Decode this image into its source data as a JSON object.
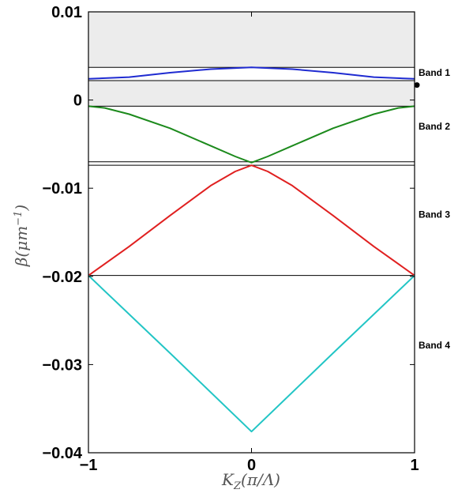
{
  "chart_data": {
    "type": "line",
    "title": "",
    "xlabel": "K_Z(π/Λ)",
    "ylabel": "β(μm⁻¹)",
    "xlim": [
      -1,
      1
    ],
    "ylim": [
      -0.04,
      0.01
    ],
    "xticks": [
      -1,
      0,
      1
    ],
    "xtick_labels": [
      "−1",
      "0",
      "1"
    ],
    "yticks": [
      0.01,
      0,
      -0.01,
      -0.02,
      -0.03,
      -0.04
    ],
    "ytick_labels": [
      "0.01",
      "0",
      "−0.01",
      "−0.02",
      "−0.03",
      "−0.04"
    ],
    "grid": false,
    "shaded_regions": [
      {
        "y0": 0.0037,
        "y1": 0.01,
        "color": "#ececec"
      },
      {
        "y0": -0.0007,
        "y1": 0.0022,
        "color": "#ececec"
      }
    ],
    "horizontal_lines": [
      {
        "y": 0.0037,
        "color": "#000000"
      },
      {
        "y": 0.0022,
        "color": "#000000"
      },
      {
        "y": -0.0007,
        "color": "#000000"
      },
      {
        "y": -0.007,
        "color": "#000000"
      },
      {
        "y": -0.0074,
        "color": "#000000"
      },
      {
        "y": -0.0199,
        "color": "#000000"
      }
    ],
    "series": [
      {
        "color": "#1f2bd1",
        "x": [
          -1,
          -0.75,
          -0.5,
          -0.25,
          0,
          0.25,
          0.5,
          0.75,
          1
        ],
        "y": [
          0.0024,
          0.0026,
          0.0031,
          0.0035,
          0.0037,
          0.0035,
          0.0031,
          0.0026,
          0.0024
        ]
      },
      {
        "color": "#1c8a1c",
        "x": [
          -1,
          -0.9,
          -0.75,
          -0.5,
          -0.25,
          -0.1,
          0,
          0.1,
          0.25,
          0.5,
          0.75,
          0.9,
          1
        ],
        "y": [
          -0.0007,
          -0.0009,
          -0.0016,
          -0.0032,
          -0.0052,
          -0.0064,
          -0.0071,
          -0.0064,
          -0.0052,
          -0.0032,
          -0.0016,
          -0.0009,
          -0.0007
        ]
      },
      {
        "color": "#e02020",
        "x": [
          -1,
          -0.75,
          -0.5,
          -0.25,
          -0.1,
          0,
          0.1,
          0.25,
          0.5,
          0.75,
          1
        ],
        "y": [
          -0.0199,
          -0.0166,
          -0.0131,
          -0.0097,
          -0.0081,
          -0.0074,
          -0.0081,
          -0.0097,
          -0.0131,
          -0.0166,
          -0.0199
        ]
      },
      {
        "color": "#22c5c5",
        "x": [
          -1,
          -0.5,
          0,
          0.5,
          1
        ],
        "y": [
          -0.0199,
          -0.0287,
          -0.0376,
          -0.0287,
          -0.0199
        ]
      }
    ],
    "markers": [
      {
        "x": 1,
        "y": 0.0017,
        "color": "#000000"
      }
    ],
    "annotations": [
      {
        "text": "Band 1",
        "y": 0.0031
      },
      {
        "text": "Band 2",
        "y": -0.003
      },
      {
        "text": "Band 3",
        "y": -0.013
      },
      {
        "text": "Band 4",
        "y": -0.0278
      }
    ]
  }
}
